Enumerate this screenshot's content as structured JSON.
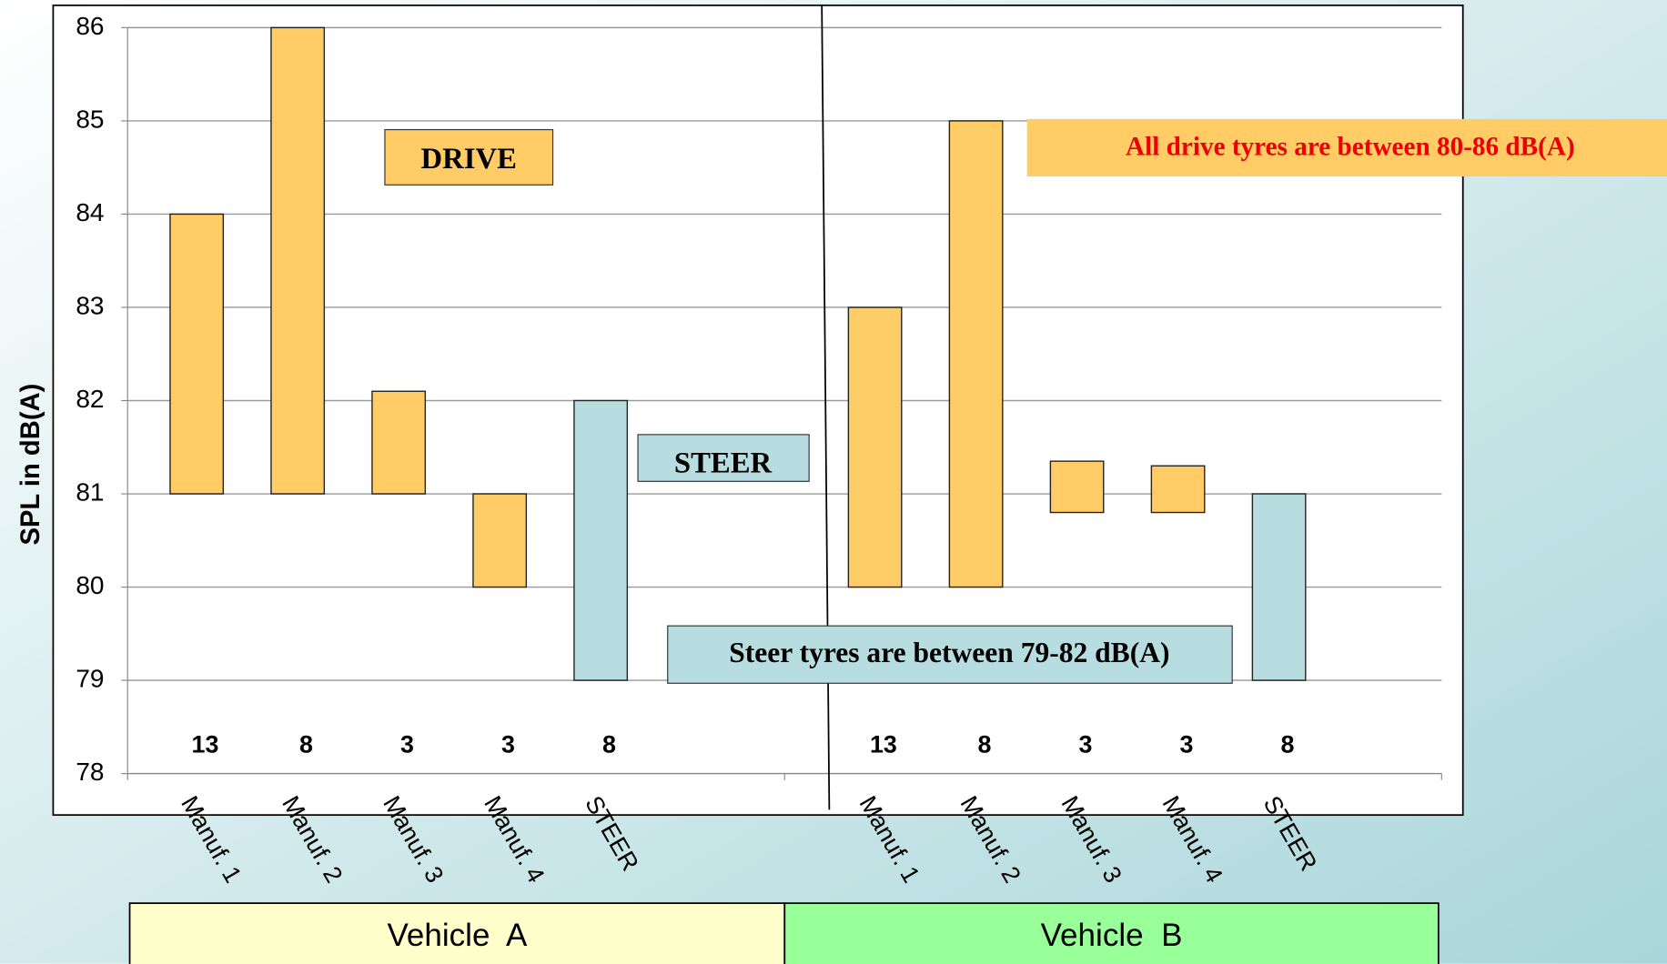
{
  "chart_data": {
    "type": "floating_bar",
    "y_axis_label": "SPL in dB(A)",
    "ylim": [
      78,
      86
    ],
    "yticks": [
      78,
      79,
      80,
      81,
      82,
      83,
      84,
      85,
      86
    ],
    "grid": true,
    "groups": [
      "Vehicle  A",
      "Vehicle  B"
    ],
    "group_colors": [
      "#ffffcc",
      "#99ff99"
    ],
    "categories": [
      "Manuf. 1",
      "Manuf. 2",
      "Manuf. 3",
      "Manuf. 4",
      "STEER",
      "Manuf. 1",
      "Manuf. 2",
      "Manuf. 3",
      "Manuf. 4",
      "STEER"
    ],
    "low": [
      81,
      81,
      81,
      80,
      79,
      80,
      80,
      80.8,
      80.8,
      79
    ],
    "high": [
      84,
      86,
      82.1,
      81,
      82,
      83,
      85,
      81.35,
      81.3,
      81
    ],
    "counts": [
      13,
      8,
      3,
      3,
      8,
      13,
      8,
      3,
      3,
      8
    ],
    "colors": [
      "#ffcc66",
      "#ffcc66",
      "#ffcc66",
      "#ffcc66",
      "#b8dde0",
      "#ffcc66",
      "#ffcc66",
      "#ffcc66",
      "#ffcc66",
      "#b8dde0"
    ],
    "annotations": [
      "DRIVE",
      "STEER",
      "All drive tyres are between 80-86 dB(A)",
      "Steer tyres are between 79-82 dB(A)"
    ]
  }
}
